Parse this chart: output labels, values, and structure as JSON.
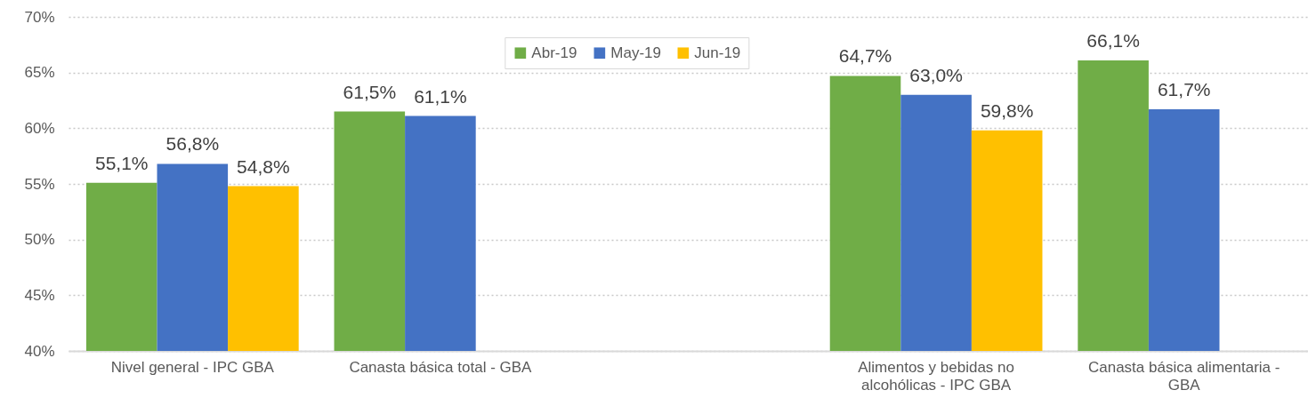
{
  "chart_data": {
    "type": "bar",
    "categories": [
      "Nivel general - IPC  GBA",
      "Canasta básica total - GBA",
      null,
      "Alimentos y bebidas no alcohólicas - IPC GBA",
      "Canasta básica alimentaria - GBA"
    ],
    "series": [
      {
        "name": "Abr-19",
        "color": "#70ad47",
        "values": [
          55.1,
          61.5,
          null,
          64.7,
          66.1
        ],
        "value_labels": [
          "55,1%",
          "61,5%",
          null,
          "64,7%",
          "66,1%"
        ]
      },
      {
        "name": "May-19",
        "color": "#4472c4",
        "values": [
          56.8,
          61.1,
          null,
          63.0,
          61.7
        ],
        "value_labels": [
          "56,8%",
          "61,1%",
          null,
          "63,0%",
          "61,7%"
        ]
      },
      {
        "name": "Jun-19",
        "color": "#ffc000",
        "values": [
          54.8,
          null,
          null,
          59.8,
          null
        ],
        "value_labels": [
          "54,8%",
          null,
          null,
          "59,8%",
          null
        ]
      }
    ],
    "ylim": [
      40,
      70
    ],
    "yticks": [
      {
        "value": 40,
        "label": "40%"
      },
      {
        "value": 45,
        "label": "45%"
      },
      {
        "value": 50,
        "label": "50%"
      },
      {
        "value": 55,
        "label": "55%"
      },
      {
        "value": 60,
        "label": "60%"
      },
      {
        "value": 65,
        "label": "65%"
      },
      {
        "value": 70,
        "label": "70%"
      }
    ],
    "grid": "y",
    "legend": "top"
  }
}
